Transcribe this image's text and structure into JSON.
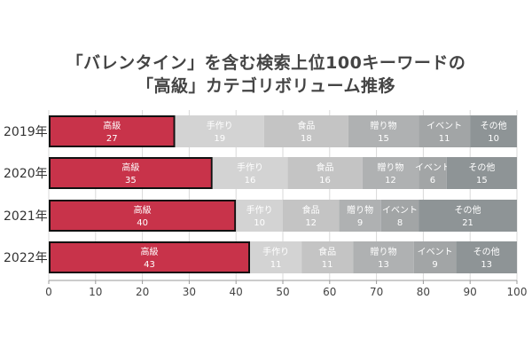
{
  "title_lines": [
    "「バレンタイン」を含む検索上位100キーワードの",
    "「高級」カテゴリボリューム推移"
  ],
  "chart_data": {
    "type": "bar",
    "orientation": "horizontal",
    "stacked": true,
    "title": "「バレンタイン」を含む検索上位100キーワードの「高級」カテゴリボリューム推移",
    "categories": [
      "2019年",
      "2020年",
      "2021年",
      "2022年"
    ],
    "series": [
      {
        "name": "高級",
        "values": [
          27,
          35,
          40,
          43
        ],
        "color": "#c8334a",
        "border": "#111111"
      },
      {
        "name": "手作り",
        "values": [
          19,
          16,
          10,
          11
        ],
        "color": "#d3d3d3"
      },
      {
        "name": "食品",
        "values": [
          18,
          16,
          12,
          11
        ],
        "color": "#c4c4c4"
      },
      {
        "name": "贈り物",
        "values": [
          15,
          12,
          9,
          13
        ],
        "color": "#afb1b2"
      },
      {
        "name": "イベント",
        "values": [
          11,
          6,
          8,
          9
        ],
        "color": "#a2a5a6"
      },
      {
        "name": "その他",
        "values": [
          10,
          15,
          21,
          13
        ],
        "color": "#8e9496"
      }
    ],
    "xlim": [
      0,
      100
    ],
    "xticks": [
      0,
      10,
      20,
      30,
      40,
      50,
      60,
      70,
      80,
      90,
      100
    ],
    "xlabel": "",
    "ylabel": "",
    "grid": true,
    "legend": "none"
  }
}
